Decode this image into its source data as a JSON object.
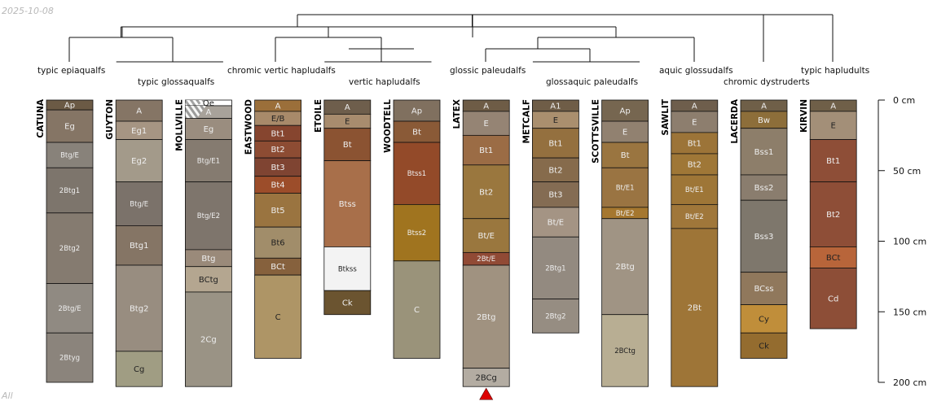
{
  "date_label": "2025-10-08",
  "filter_label": "All",
  "depth_unit": "cm",
  "depth_ticks": [
    0,
    50,
    100,
    150,
    200
  ],
  "max_depth_cm": 200,
  "groups": [
    {
      "name": "typic epiaqualfs",
      "members": [
        0
      ]
    },
    {
      "name": "typic glossaqualfs",
      "members": [
        1,
        2
      ]
    },
    {
      "name": "chromic vertic hapludalfs",
      "members": [
        3
      ]
    },
    {
      "name": "vertic hapludalfs",
      "members": [
        4,
        5
      ]
    },
    {
      "name": "glossic paleudalfs",
      "members": [
        6
      ]
    },
    {
      "name": "glossaquic paleudalfs",
      "members": [
        7,
        8
      ]
    },
    {
      "name": "aquic glossudalfs",
      "members": [
        9
      ]
    },
    {
      "name": "chromic dystruderts",
      "members": [
        10
      ]
    },
    {
      "name": "typic hapludults",
      "members": [
        11
      ]
    }
  ],
  "profiles": [
    {
      "name": "CATUNA",
      "horizons": [
        {
          "name": "Ap",
          "top": 0,
          "bottom": 7,
          "color": "#6b5a45",
          "text": "light"
        },
        {
          "name": "Eg",
          "top": 7,
          "bottom": 30,
          "color": "#857565",
          "text": "light"
        },
        {
          "name": "Btg/E",
          "top": 30,
          "bottom": 48,
          "color": "#88827a",
          "text": "light"
        },
        {
          "name": "2Btg1",
          "top": 48,
          "bottom": 80,
          "color": "#7d756c",
          "text": "light"
        },
        {
          "name": "2Btg2",
          "top": 80,
          "bottom": 130,
          "color": "#857b70",
          "text": "light"
        },
        {
          "name": "2Btg/E",
          "top": 130,
          "bottom": 165,
          "color": "#908a82",
          "text": "light"
        },
        {
          "name": "2Btyg",
          "top": 165,
          "bottom": 200,
          "color": "#8b847c",
          "text": "light"
        }
      ]
    },
    {
      "name": "GUYTON",
      "horizons": [
        {
          "name": "A",
          "top": 0,
          "bottom": 15,
          "color": "#857565",
          "text": "light"
        },
        {
          "name": "Eg1",
          "top": 15,
          "bottom": 28,
          "color": "#a69583",
          "text": "light"
        },
        {
          "name": "Eg2",
          "top": 28,
          "bottom": 58,
          "color": "#a39a8a",
          "text": "light"
        },
        {
          "name": "Btg/E",
          "top": 58,
          "bottom": 89,
          "color": "#7b726a",
          "text": "light"
        },
        {
          "name": "Btg1",
          "top": 89,
          "bottom": 117,
          "color": "#857565",
          "text": "light"
        },
        {
          "name": "Btg2",
          "top": 117,
          "bottom": 178,
          "color": "#988d80",
          "text": "light"
        },
        {
          "name": "Cg",
          "top": 178,
          "bottom": 203,
          "color": "#a09d83",
          "text": "dark"
        }
      ]
    },
    {
      "name": "MOLLVILLE",
      "horizons": [
        {
          "name": "Oe",
          "top": 0,
          "bottom": 4,
          "color": "#ffffff",
          "text": "dark",
          "pattern": true
        },
        {
          "name": "A",
          "top": 4,
          "bottom": 13,
          "color": "#a8a29a",
          "text": "light",
          "pattern": true
        },
        {
          "name": "Eg",
          "top": 13,
          "bottom": 28,
          "color": "#9a8d7f",
          "text": "light"
        },
        {
          "name": "Btg/E1",
          "top": 28,
          "bottom": 58,
          "color": "#857b70",
          "text": "light"
        },
        {
          "name": "Btg/E2",
          "top": 58,
          "bottom": 106,
          "color": "#7e756c",
          "text": "light"
        },
        {
          "name": "Btg",
          "top": 106,
          "bottom": 118,
          "color": "#9a8a7a",
          "text": "light"
        },
        {
          "name": "BCtg",
          "top": 118,
          "bottom": 136,
          "color": "#b4a690",
          "text": "dark"
        },
        {
          "name": "2Cg",
          "top": 136,
          "bottom": 203,
          "color": "#9a9385",
          "text": "light"
        }
      ]
    },
    {
      "name": "EASTWOOD",
      "horizons": [
        {
          "name": "A",
          "top": 0,
          "bottom": 8,
          "color": "#9b6f3a",
          "text": "light"
        },
        {
          "name": "E/B",
          "top": 8,
          "bottom": 18,
          "color": "#a88a6a",
          "text": "dark"
        },
        {
          "name": "Bt1",
          "top": 18,
          "bottom": 29,
          "color": "#86452f",
          "text": "light"
        },
        {
          "name": "Bt2",
          "top": 29,
          "bottom": 41,
          "color": "#8d4c33",
          "text": "light"
        },
        {
          "name": "Bt3",
          "top": 41,
          "bottom": 54,
          "color": "#7f4432",
          "text": "light"
        },
        {
          "name": "Bt4",
          "top": 54,
          "bottom": 66,
          "color": "#9c4d2a",
          "text": "light"
        },
        {
          "name": "Bt5",
          "top": 66,
          "bottom": 90,
          "color": "#9a7440",
          "text": "light"
        },
        {
          "name": "Bt6",
          "top": 90,
          "bottom": 112,
          "color": "#a18d6a",
          "text": "dark"
        },
        {
          "name": "BCt",
          "top": 112,
          "bottom": 124,
          "color": "#86613d",
          "text": "light"
        },
        {
          "name": "C",
          "top": 124,
          "bottom": 183,
          "color": "#ae9566",
          "text": "dark"
        }
      ]
    },
    {
      "name": "ETOILE",
      "horizons": [
        {
          "name": "A",
          "top": 0,
          "bottom": 10,
          "color": "#6e5e4c",
          "text": "light"
        },
        {
          "name": "E",
          "top": 10,
          "bottom": 20,
          "color": "#a88c6e",
          "text": "dark"
        },
        {
          "name": "Bt",
          "top": 20,
          "bottom": 43,
          "color": "#8b5332",
          "text": "light"
        },
        {
          "name": "Btss",
          "top": 43,
          "bottom": 104,
          "color": "#a86f4a",
          "text": "light"
        },
        {
          "name": "Btkss",
          "top": 104,
          "bottom": 135,
          "color": "#f3f3f3",
          "text": "dark"
        },
        {
          "name": "Ck",
          "top": 135,
          "bottom": 152,
          "color": "#6b5430",
          "text": "light"
        }
      ]
    },
    {
      "name": "WOODTELL",
      "horizons": [
        {
          "name": "Ap",
          "top": 0,
          "bottom": 15,
          "color": "#80705f",
          "text": "light"
        },
        {
          "name": "Bt",
          "top": 15,
          "bottom": 30,
          "color": "#8a5a37",
          "text": "light"
        },
        {
          "name": "Btss1",
          "top": 30,
          "bottom": 74,
          "color": "#934a29",
          "text": "light"
        },
        {
          "name": "Btss2",
          "top": 74,
          "bottom": 114,
          "color": "#a0741f",
          "text": "light"
        },
        {
          "name": "C",
          "top": 114,
          "bottom": 183,
          "color": "#9a937a",
          "text": "light"
        }
      ]
    },
    {
      "name": "LATEX",
      "horizons": [
        {
          "name": "A",
          "top": 0,
          "bottom": 8,
          "color": "#6e5c46",
          "text": "light"
        },
        {
          "name": "E",
          "top": 8,
          "bottom": 25,
          "color": "#958474",
          "text": "light"
        },
        {
          "name": "Bt1",
          "top": 25,
          "bottom": 46,
          "color": "#9b6c45",
          "text": "light"
        },
        {
          "name": "Bt2",
          "top": 46,
          "bottom": 84,
          "color": "#9a773e",
          "text": "light"
        },
        {
          "name": "Bt/E",
          "top": 84,
          "bottom": 108,
          "color": "#9a773e",
          "text": "light"
        },
        {
          "name": "2Bt/E",
          "top": 108,
          "bottom": 117,
          "color": "#914a35",
          "text": "light"
        },
        {
          "name": "2Btg",
          "top": 117,
          "bottom": 190,
          "color": "#a09280",
          "text": "light"
        },
        {
          "name": "2BCg",
          "top": 190,
          "bottom": 203,
          "color": "#b3aca2",
          "text": "dark"
        }
      ]
    },
    {
      "name": "METCALF",
      "horizons": [
        {
          "name": "A1",
          "top": 0,
          "bottom": 8,
          "color": "#6f5d47",
          "text": "light"
        },
        {
          "name": "E",
          "top": 8,
          "bottom": 20,
          "color": "#aa8f6e",
          "text": "dark"
        },
        {
          "name": "Bt1",
          "top": 20,
          "bottom": 41,
          "color": "#94703f",
          "text": "light"
        },
        {
          "name": "Bt2",
          "top": 41,
          "bottom": 58,
          "color": "#866b4c",
          "text": "light"
        },
        {
          "name": "Bt3",
          "top": 58,
          "bottom": 76,
          "color": "#846c53",
          "text": "light"
        },
        {
          "name": "Bt/E",
          "top": 76,
          "bottom": 97,
          "color": "#a49484",
          "text": "light"
        },
        {
          "name": "2Btg1",
          "top": 97,
          "bottom": 141,
          "color": "#938a80",
          "text": "light"
        },
        {
          "name": "2Btg2",
          "top": 141,
          "bottom": 165,
          "color": "#968d82",
          "text": "light"
        }
      ]
    },
    {
      "name": "SCOTTSVILLE",
      "horizons": [
        {
          "name": "Ap",
          "top": 0,
          "bottom": 15,
          "color": "#766650",
          "text": "light"
        },
        {
          "name": "E",
          "top": 15,
          "bottom": 30,
          "color": "#918170",
          "text": "light"
        },
        {
          "name": "Bt",
          "top": 30,
          "bottom": 48,
          "color": "#9a7540",
          "text": "light"
        },
        {
          "name": "Bt/E1",
          "top": 48,
          "bottom": 76,
          "color": "#9a7442",
          "text": "light"
        },
        {
          "name": "Bt/E2",
          "top": 76,
          "bottom": 84,
          "color": "#a5772f",
          "text": "light"
        },
        {
          "name": "2Btg",
          "top": 84,
          "bottom": 152,
          "color": "#a09484",
          "text": "light"
        },
        {
          "name": "2BCtg",
          "top": 152,
          "bottom": 203,
          "color": "#b8ae93",
          "text": "dark"
        }
      ]
    },
    {
      "name": "SAWLIT",
      "horizons": [
        {
          "name": "A",
          "top": 0,
          "bottom": 8,
          "color": "#6e5e4c",
          "text": "light"
        },
        {
          "name": "E",
          "top": 8,
          "bottom": 23,
          "color": "#8d7e6e",
          "text": "light"
        },
        {
          "name": "Bt1",
          "top": 23,
          "bottom": 38,
          "color": "#9c7438",
          "text": "light"
        },
        {
          "name": "Bt2",
          "top": 38,
          "bottom": 53,
          "color": "#9f7737",
          "text": "light"
        },
        {
          "name": "Bt/E1",
          "top": 53,
          "bottom": 74,
          "color": "#9e7637",
          "text": "light"
        },
        {
          "name": "Bt/E2",
          "top": 74,
          "bottom": 91,
          "color": "#a0773a",
          "text": "light"
        },
        {
          "name": "2Bt",
          "top": 91,
          "bottom": 203,
          "color": "#9e7537",
          "text": "light"
        }
      ]
    },
    {
      "name": "LACERDA",
      "horizons": [
        {
          "name": "A",
          "top": 0,
          "bottom": 8,
          "color": "#6f5f48",
          "text": "light"
        },
        {
          "name": "Bw",
          "top": 8,
          "bottom": 20,
          "color": "#8d6e3a",
          "text": "light"
        },
        {
          "name": "Bss1",
          "top": 20,
          "bottom": 53,
          "color": "#8d7e6a",
          "text": "light"
        },
        {
          "name": "Bss2",
          "top": 53,
          "bottom": 71,
          "color": "#8a7d6e",
          "text": "light"
        },
        {
          "name": "Bss3",
          "top": 71,
          "bottom": 122,
          "color": "#7e776c",
          "text": "light"
        },
        {
          "name": "BCss",
          "top": 122,
          "bottom": 145,
          "color": "#90785c",
          "text": "light"
        },
        {
          "name": "Cy",
          "top": 145,
          "bottom": 165,
          "color": "#c08e3a",
          "text": "dark"
        },
        {
          "name": "Ck",
          "top": 165,
          "bottom": 183,
          "color": "#946c2f",
          "text": "dark"
        }
      ]
    },
    {
      "name": "KIRVIN",
      "horizons": [
        {
          "name": "A",
          "top": 0,
          "bottom": 8,
          "color": "#6f5f48",
          "text": "light"
        },
        {
          "name": "E",
          "top": 8,
          "bottom": 28,
          "color": "#a38f78",
          "text": "dark"
        },
        {
          "name": "Bt1",
          "top": 28,
          "bottom": 58,
          "color": "#8e4e37",
          "text": "light"
        },
        {
          "name": "Bt2",
          "top": 58,
          "bottom": 104,
          "color": "#8e4e37",
          "text": "light"
        },
        {
          "name": "BCt",
          "top": 104,
          "bottom": 119,
          "color": "#b8653a",
          "text": "dark"
        },
        {
          "name": "Cd",
          "top": 119,
          "bottom": 162,
          "color": "#8d4e37",
          "text": "light"
        }
      ]
    }
  ],
  "marker_profile": 6,
  "colors": {
    "outline": "#111111",
    "tree": "#111111",
    "marker": "#dd0000",
    "text_light": "#eeeeee",
    "text_dark": "#222222"
  }
}
